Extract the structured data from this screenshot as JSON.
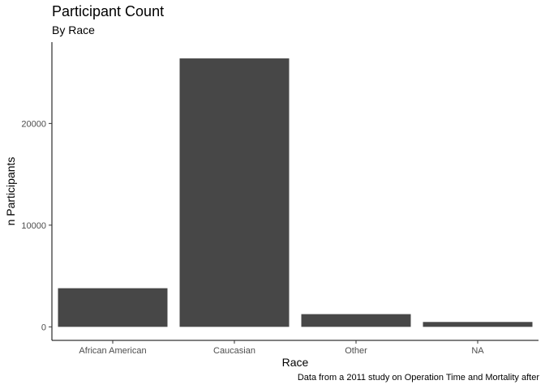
{
  "chart_data": {
    "type": "bar",
    "title": "Participant Count",
    "subtitle": "By Race",
    "xlabel": "Race",
    "ylabel": "n Participants",
    "caption": "Data from a 2011 study on Operation Time and Mortality after",
    "categories": [
      "African American",
      "Caucasian",
      "Other",
      "NA"
    ],
    "values": [
      3800,
      26400,
      1250,
      480
    ],
    "yticks": [
      0,
      10000,
      20000
    ],
    "ytick_labels": [
      "0",
      "10000",
      "20000"
    ],
    "ylim": [
      -1330,
      28000
    ],
    "grid": false,
    "legend": "none",
    "bar_color": "#474747"
  }
}
